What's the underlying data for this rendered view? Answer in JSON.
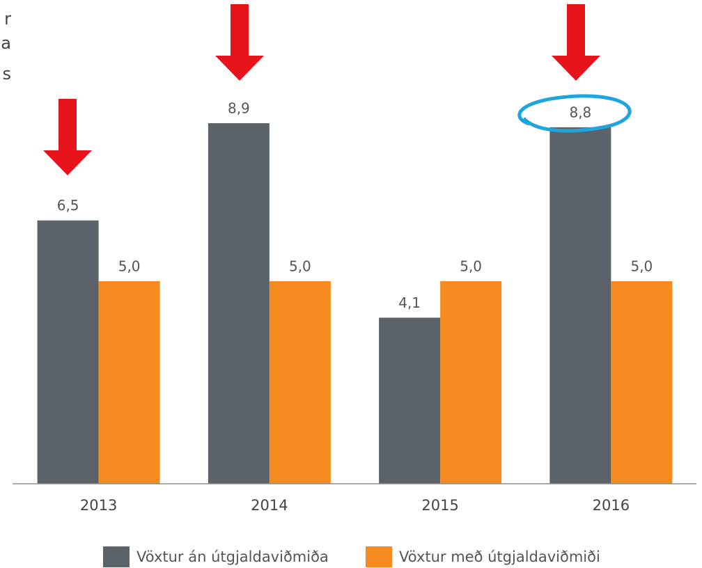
{
  "chart_data": {
    "type": "bar",
    "annotations": [
      "r",
      "a",
      "s"
    ],
    "categories": [
      "2013",
      "2014",
      "2015",
      "2016"
    ],
    "series": [
      {
        "name": "Vöxtur án útgjaldaviðmiða",
        "color": "#5b6369",
        "values": [
          6.5,
          8.9,
          4.1,
          8.8
        ],
        "value_labels": [
          "6,5",
          "8,9",
          "4,1",
          "8,8"
        ]
      },
      {
        "name": "Vöxtur með útgjaldaviðmiði",
        "color": "#f68b1f",
        "values": [
          5,
          5,
          5,
          5
        ],
        "value_labels": [
          "5,0",
          "5,0",
          "5,0",
          "5,0"
        ]
      }
    ],
    "ylim": [
      0,
      10
    ]
  }
}
